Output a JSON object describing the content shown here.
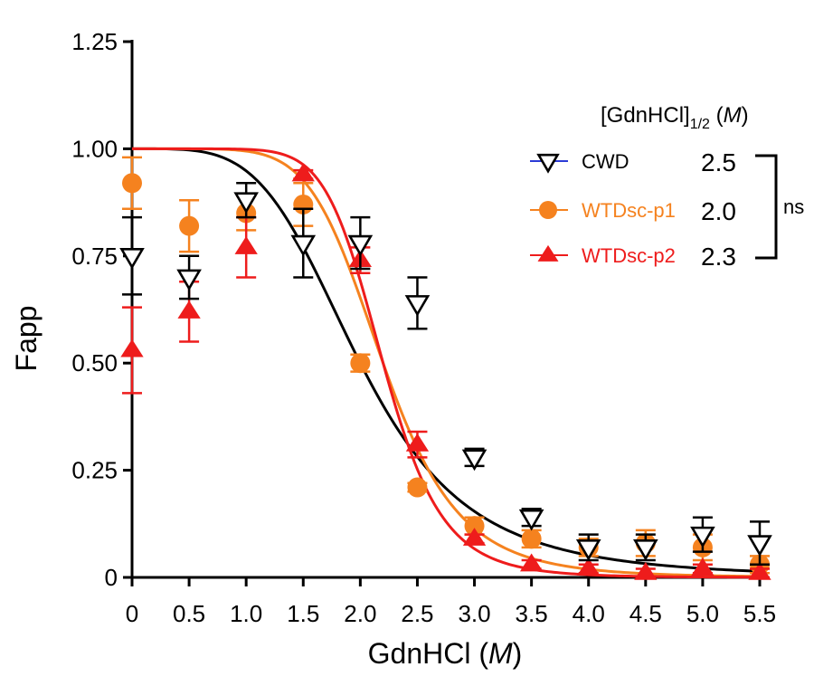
{
  "colors": {
    "CWD": "#000000",
    "WTDsc-p1": "#F5821F",
    "WTDsc-p2": "#EE1C1C",
    "CWD_legend_line": "#2B3BD6"
  },
  "legend": {
    "title_main": "[GdnHCl]",
    "title_sub": "1/2",
    "title_unit_open": " (",
    "title_unit": "M",
    "title_unit_close": ")",
    "significance": "ns"
  },
  "chart_data": {
    "type": "scatter",
    "xlabel_main": "GdnHCl (",
    "xlabel_unit": "M",
    "xlabel_close": ")",
    "ylabel": "Fapp",
    "xlim": [
      0,
      5.5
    ],
    "ylim": [
      0,
      1.25
    ],
    "x_ticks": [
      "0",
      "0.5",
      "1.0",
      "1.5",
      "2.0",
      "2.5",
      "3.0",
      "3.5",
      "4.0",
      "4.5",
      "5.0",
      "5.5"
    ],
    "y_ticks": [
      "0",
      "0.25",
      "0.50",
      "0.75",
      "1.00",
      "1.25"
    ],
    "x_tick_values": [
      0,
      0.5,
      1.0,
      1.5,
      2.0,
      2.5,
      3.0,
      3.5,
      4.0,
      4.5,
      5.0,
      5.5
    ],
    "y_tick_values": [
      0,
      0.25,
      0.5,
      0.75,
      1.0,
      1.25
    ],
    "series": [
      {
        "name": "CWD",
        "marker": "triangle-down-open",
        "half_value": "2.5",
        "x": [
          0,
          0.5,
          1.0,
          1.5,
          2.0,
          2.5,
          3.0,
          3.5,
          4.0,
          4.5,
          5.0,
          5.5
        ],
        "y": [
          0.75,
          0.7,
          0.88,
          0.78,
          0.78,
          0.64,
          0.28,
          0.14,
          0.07,
          0.07,
          0.1,
          0.08
        ],
        "err": [
          0.09,
          0.05,
          0.04,
          0.08,
          0.06,
          0.06,
          0.02,
          0.02,
          0.03,
          0.03,
          0.04,
          0.05
        ],
        "fit": {
          "midpoint": 2.0,
          "hill": 4.2
        }
      },
      {
        "name": "WTDsc-p1",
        "marker": "circle-filled",
        "half_value": "2.0",
        "x": [
          0,
          0.5,
          1.0,
          1.5,
          2.0,
          2.5,
          3.0,
          3.5,
          4.0,
          4.5,
          5.0,
          5.5
        ],
        "y": [
          0.92,
          0.82,
          0.85,
          0.87,
          0.5,
          0.21,
          0.12,
          0.09,
          0.07,
          0.08,
          0.07,
          0.03
        ],
        "err": [
          0.06,
          0.06,
          0.04,
          0.05,
          0.02,
          0.01,
          0.02,
          0.02,
          0.02,
          0.03,
          0.03,
          0.02
        ],
        "fit": {
          "midpoint": 2.2,
          "hill": 6.6
        }
      },
      {
        "name": "WTDsc-p2",
        "marker": "triangle-up-filled",
        "half_value": "2.3",
        "x": [
          0,
          0.5,
          1.0,
          1.5,
          2.0,
          2.5,
          3.0,
          3.5,
          4.0,
          4.5,
          5.0,
          5.5
        ],
        "y": [
          0.53,
          0.62,
          0.77,
          0.94,
          0.74,
          0.31,
          0.09,
          0.03,
          0.02,
          0.01,
          0.02,
          0.01
        ],
        "err": [
          0.1,
          0.07,
          0.07,
          0.01,
          0.03,
          0.03,
          0.01,
          0.01,
          0.01,
          0.01,
          0.01,
          0.01
        ],
        "fit": {
          "midpoint": 2.2,
          "hill": 8.5
        }
      }
    ]
  }
}
